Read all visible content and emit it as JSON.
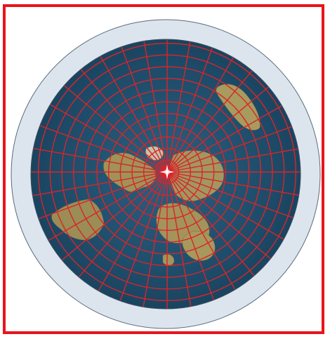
{
  "map": {
    "projection": "azimuthal-equidistant-north-polar",
    "graticule_color": "#d8252a",
    "frame_color": "#e8141c",
    "ocean_color": "#1e4e6e",
    "ice_rim_color": "#dde6ef",
    "land_color": "#9a8a52",
    "meridian_count": 36,
    "parallel_count": 12,
    "center_marker_icon": "north-pole-star-icon"
  }
}
